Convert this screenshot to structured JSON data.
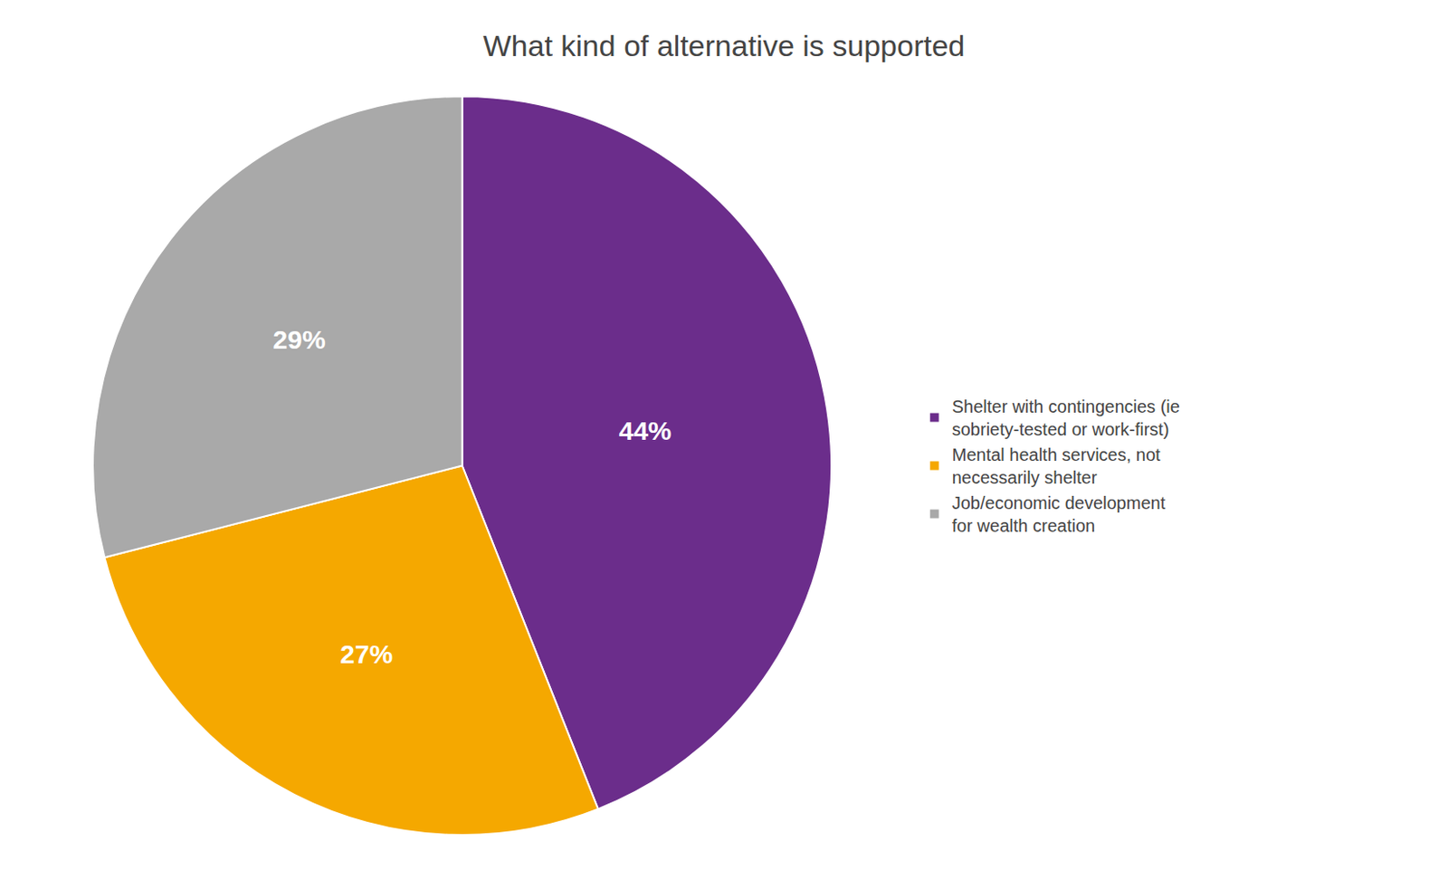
{
  "chart_data": {
    "type": "pie",
    "title": "What kind of alternative is supported",
    "categories": [
      "Shelter with contingencies (ie\nsobriety-tested or work-first)",
      "Mental health services, not\nnecessarily shelter",
      "Job/economic development\nfor wealth creation"
    ],
    "values": [
      44,
      27,
      29
    ],
    "value_labels": [
      "44%",
      "27%",
      "29%"
    ],
    "colors": [
      "#6B2D8B",
      "#F5A800",
      "#A9A9A9"
    ],
    "data_labels": true,
    "legend": "right"
  }
}
